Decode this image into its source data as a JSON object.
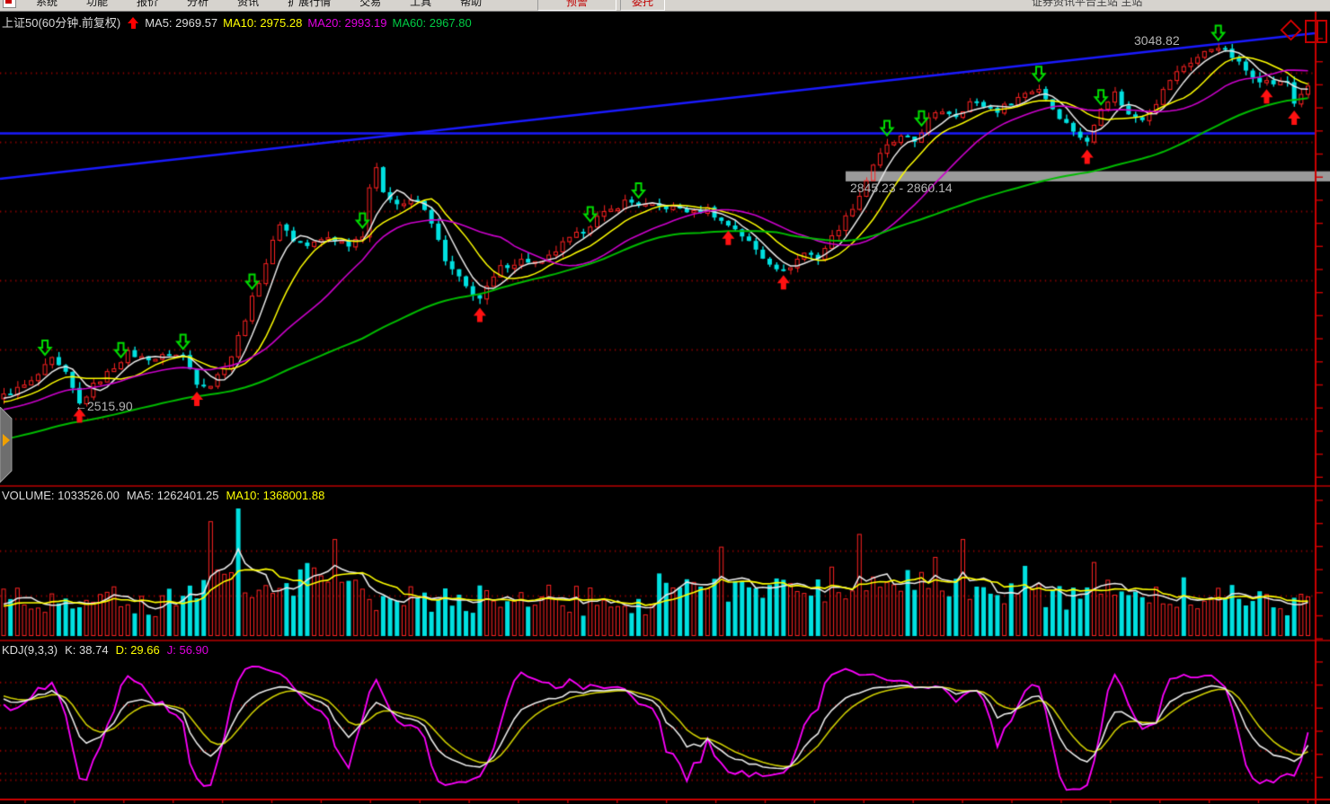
{
  "menubar": {
    "items": [
      "系统",
      "功能",
      "报价",
      "分析",
      "资讯",
      "扩展行情",
      "交易",
      "工具",
      "帮助"
    ],
    "alert_buttons": [
      "预警",
      "委托"
    ],
    "right_text": "证券资讯平台主站 主站"
  },
  "main_chart": {
    "title": "上证50(60分钟.前复权)",
    "ma_labels": [
      {
        "text": "MA5: 2969.57",
        "color": "#dcdcdc"
      },
      {
        "text": "MA10: 2975.28",
        "color": "#ffff00"
      },
      {
        "text": "MA20: 2993.19",
        "color": "#e000e0"
      },
      {
        "text": "MA60: 2967.80",
        "color": "#00cc44"
      }
    ],
    "annotations": {
      "peak": "3048.82",
      "gap": "2845.23 - 2860.14",
      "trough": "←2515.90"
    }
  },
  "volume_panel": {
    "labels": [
      {
        "text": "VOLUME: 1033526.00",
        "color": "#dcdcdc"
      },
      {
        "text": "MA5: 1262401.25",
        "color": "#dcdcdc"
      },
      {
        "text": "MA10: 1368001.88",
        "color": "#ffff00"
      }
    ]
  },
  "kdj_panel": {
    "labels": [
      {
        "text": "KDJ(9,3,3)",
        "color": "#dcdcdc"
      },
      {
        "text": "K: 38.74",
        "color": "#dcdcdc"
      },
      {
        "text": "D: 29.66",
        "color": "#ffff00"
      },
      {
        "text": "J: 56.90",
        "color": "#e000e0"
      }
    ]
  },
  "colors": {
    "background": "#000000",
    "candle_up": "#ff2222",
    "candle_down": "#00e0e0",
    "ma5": "#e8e8e8",
    "ma10": "#ffff00",
    "ma20": "#cc00cc",
    "ma60": "#00bb00",
    "grid": "#8f0000",
    "axis": "#cc0000",
    "divider": "#8b0000",
    "trend_line": "#1a1aff",
    "gap_band": "#9a9a9a",
    "annotation": "#b4b4b4",
    "buy_signal": "#ff1111",
    "sell_signal": "#00dd00",
    "vol_ma5": "#e8e8e8",
    "vol_ma10": "#ffff00",
    "kdj_k": "#e8e8e8",
    "kdj_d": "#cccc00",
    "kdj_j": "#ff00ff"
  },
  "chart_data": {
    "type": "candlestick+volume+kdj",
    "symbol": "上证50",
    "period": "60分钟.前复权",
    "bars": 190,
    "price_axis": {
      "top_price": 3068,
      "bottom_price": 2402
    },
    "ma_periods": [
      5,
      10,
      20,
      60
    ],
    "ma_values": {
      "ma5": 2969.57,
      "ma10": 2975.28,
      "ma20": 2993.19,
      "ma60": 2967.8
    },
    "price_anchors": [
      [
        0,
        2529
      ],
      [
        4,
        2549
      ],
      [
        7,
        2582
      ],
      [
        9,
        2560
      ],
      [
        11,
        2516
      ],
      [
        13,
        2544
      ],
      [
        15,
        2562
      ],
      [
        18,
        2592
      ],
      [
        20,
        2585
      ],
      [
        22,
        2584
      ],
      [
        24,
        2590
      ],
      [
        26,
        2588
      ],
      [
        28,
        2549
      ],
      [
        30,
        2545
      ],
      [
        33,
        2588
      ],
      [
        36,
        2672
      ],
      [
        38,
        2726
      ],
      [
        40,
        2785
      ],
      [
        42,
        2759
      ],
      [
        44,
        2750
      ],
      [
        47,
        2763
      ],
      [
        50,
        2753
      ],
      [
        52,
        2768
      ],
      [
        53,
        2838
      ],
      [
        54,
        2862
      ],
      [
        55,
        2832
      ],
      [
        57,
        2812
      ],
      [
        60,
        2816
      ],
      [
        62,
        2786
      ],
      [
        64,
        2726
      ],
      [
        67,
        2689
      ],
      [
        69,
        2672
      ],
      [
        72,
        2718
      ],
      [
        75,
        2729
      ],
      [
        78,
        2724
      ],
      [
        81,
        2753
      ],
      [
        84,
        2773
      ],
      [
        86,
        2792
      ],
      [
        88,
        2803
      ],
      [
        90,
        2816
      ],
      [
        93,
        2810
      ],
      [
        95,
        2808
      ],
      [
        98,
        2805
      ],
      [
        100,
        2799
      ],
      [
        102,
        2805
      ],
      [
        104,
        2786
      ],
      [
        106,
        2776
      ],
      [
        108,
        2755
      ],
      [
        110,
        2733
      ],
      [
        113,
        2712
      ],
      [
        116,
        2740
      ],
      [
        118,
        2733
      ],
      [
        120,
        2763
      ],
      [
        122,
        2792
      ],
      [
        124,
        2825
      ],
      [
        126,
        2871
      ],
      [
        128,
        2897
      ],
      [
        130,
        2910
      ],
      [
        132,
        2904
      ],
      [
        134,
        2937
      ],
      [
        136,
        2950
      ],
      [
        138,
        2943
      ],
      [
        140,
        2963
      ],
      [
        142,
        2957
      ],
      [
        144,
        2950
      ],
      [
        146,
        2963
      ],
      [
        148,
        2976
      ],
      [
        150,
        2983
      ],
      [
        152,
        2953
      ],
      [
        154,
        2930
      ],
      [
        157,
        2902
      ],
      [
        159,
        2957
      ],
      [
        161,
        2976
      ],
      [
        163,
        2943
      ],
      [
        165,
        2939
      ],
      [
        167,
        2963
      ],
      [
        169,
        2996
      ],
      [
        171,
        3016
      ],
      [
        173,
        3029
      ],
      [
        175,
        3042
      ],
      [
        176,
        3046
      ],
      [
        178,
        3029
      ],
      [
        180,
        3009
      ],
      [
        182,
        2996
      ],
      [
        184,
        2990
      ],
      [
        186,
        2992
      ],
      [
        187,
        2961
      ],
      [
        188,
        2976
      ],
      [
        189,
        2983
      ]
    ],
    "signals": {
      "buy_bars": [
        11,
        28,
        69,
        105,
        113,
        157,
        183,
        187
      ],
      "sell_bars": [
        6,
        17,
        26,
        36,
        52,
        85,
        92,
        128,
        133,
        150,
        159,
        176
      ]
    },
    "trend_lines": [
      {
        "kind": "diagonal",
        "from_price": 2849,
        "to_price": 3064
      },
      {
        "kind": "horizontal",
        "price": 2916
      }
    ],
    "gap_band": {
      "low": 2845.23,
      "high": 2860.14,
      "from_bar": 122,
      "label": "2845.23 - 2860.14"
    },
    "peak": {
      "bar": 176,
      "price": 3048.82,
      "label": "3048.82"
    },
    "trough": {
      "bar": 11,
      "price": 2515.9,
      "label": "←2515.90"
    },
    "volume": {
      "current": 1033526.0,
      "ma5": 1262401.25,
      "ma10": 1368001.88,
      "spikes": [
        [
          30,
          0.9,
          "up"
        ],
        [
          34,
          1.0,
          "down"
        ],
        [
          48,
          0.76,
          "up"
        ],
        [
          104,
          0.7,
          "up"
        ],
        [
          124,
          0.8,
          "up"
        ],
        [
          135,
          0.62,
          "up"
        ],
        [
          139,
          0.76,
          "up"
        ],
        [
          148,
          0.55,
          "down"
        ],
        [
          158,
          0.58,
          "up"
        ],
        [
          171,
          0.46,
          "down"
        ],
        [
          178,
          0.4,
          "down"
        ]
      ]
    },
    "kdj": {
      "params": "9,3,3",
      "k": 38.74,
      "d": 29.66,
      "j": 56.9
    }
  }
}
